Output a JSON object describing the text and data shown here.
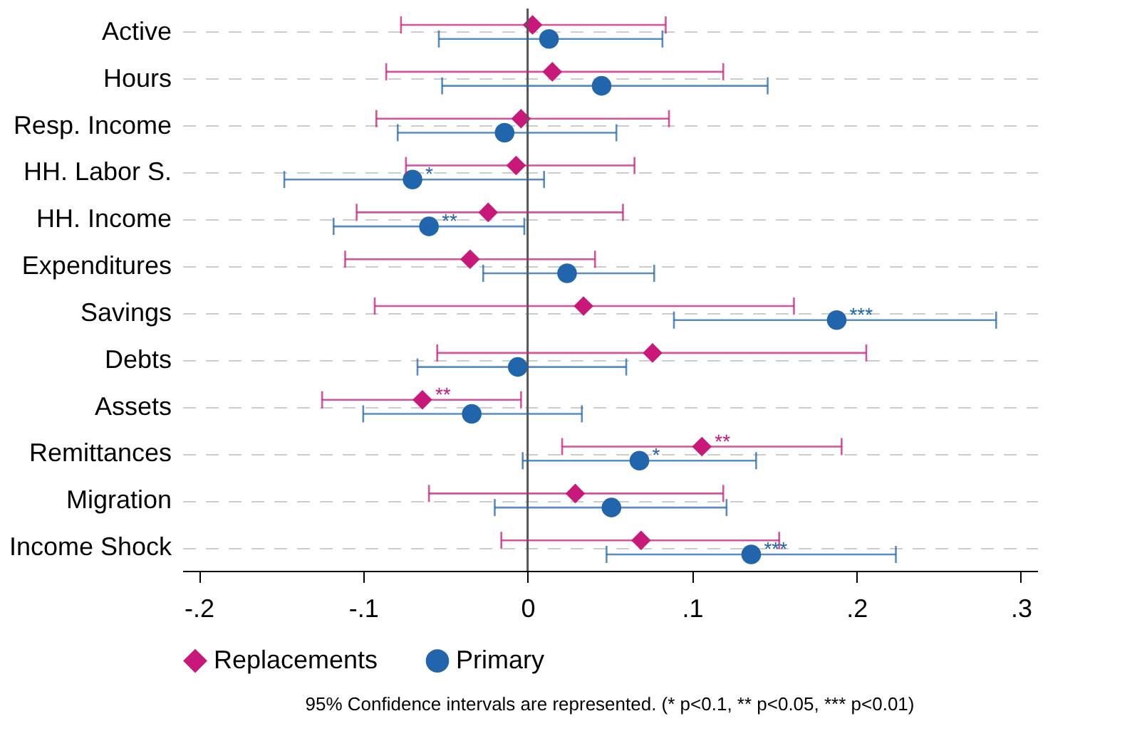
{
  "chart_data": {
    "type": "scatter",
    "orientation": "horizontal",
    "categories": [
      "Active",
      "Hours",
      "Resp. Income",
      "HH. Labor S.",
      "HH. Income",
      "Expenditures",
      "Savings",
      "Debts",
      "Assets",
      "Remittances",
      "Migration",
      "Income Shock"
    ],
    "series": [
      {
        "name": "Replacements",
        "color": "#c8197a",
        "marker": "diamond",
        "values": [
          0.003,
          0.015,
          -0.004,
          -0.007,
          -0.024,
          -0.035,
          0.034,
          0.076,
          -0.064,
          0.106,
          0.029,
          0.069
        ],
        "errors": [
          [
            -0.077,
            0.084
          ],
          [
            -0.086,
            0.119
          ],
          [
            -0.092,
            0.086
          ],
          [
            -0.074,
            0.065
          ],
          [
            -0.104,
            0.058
          ],
          [
            -0.111,
            0.041
          ],
          [
            -0.093,
            0.162
          ],
          [
            -0.055,
            0.206
          ],
          [
            -0.125,
            -0.004
          ],
          [
            0.021,
            0.191
          ],
          [
            -0.06,
            0.119
          ],
          [
            -0.016,
            0.153
          ]
        ],
        "value_labels": [
          null,
          null,
          null,
          null,
          null,
          null,
          null,
          null,
          "**",
          "**",
          null,
          null
        ]
      },
      {
        "name": "Primary",
        "color": "#2166ac",
        "marker": "circle",
        "values": [
          0.013,
          0.045,
          -0.014,
          -0.07,
          -0.06,
          0.024,
          0.188,
          -0.006,
          -0.034,
          0.068,
          0.051,
          0.136
        ],
        "errors": [
          [
            -0.054,
            0.082
          ],
          [
            -0.052,
            0.146
          ],
          [
            -0.079,
            0.054
          ],
          [
            -0.148,
            0.01
          ],
          [
            -0.118,
            -0.002
          ],
          [
            -0.027,
            0.077
          ],
          [
            0.089,
            0.285
          ],
          [
            -0.067,
            0.06
          ],
          [
            -0.1,
            0.033
          ],
          [
            -0.003,
            0.139
          ],
          [
            -0.02,
            0.121
          ],
          [
            0.048,
            0.224
          ]
        ],
        "value_labels": [
          null,
          null,
          null,
          "*",
          "**",
          null,
          "***",
          null,
          null,
          "*",
          null,
          "***"
        ]
      }
    ],
    "xlim": [
      -0.21,
      0.31
    ],
    "xticks": [
      {
        "value": -0.2,
        "label": "-.2"
      },
      {
        "value": -0.1,
        "label": "-.1"
      },
      0,
      {
        "value": 0.1,
        "label": ".1"
      },
      {
        "value": 0.2,
        "label": ".2"
      },
      {
        "value": 0.3,
        "label": ".3"
      }
    ],
    "ref_lines": [
      {
        "axis": "x",
        "value": 0,
        "color": "#555555"
      }
    ],
    "grid": "y",
    "legend": "bottom",
    "annotations": [
      "95% Confidence intervals are represented. (* p<0.1, ** p<0.05, *** p<0.01)"
    ]
  }
}
